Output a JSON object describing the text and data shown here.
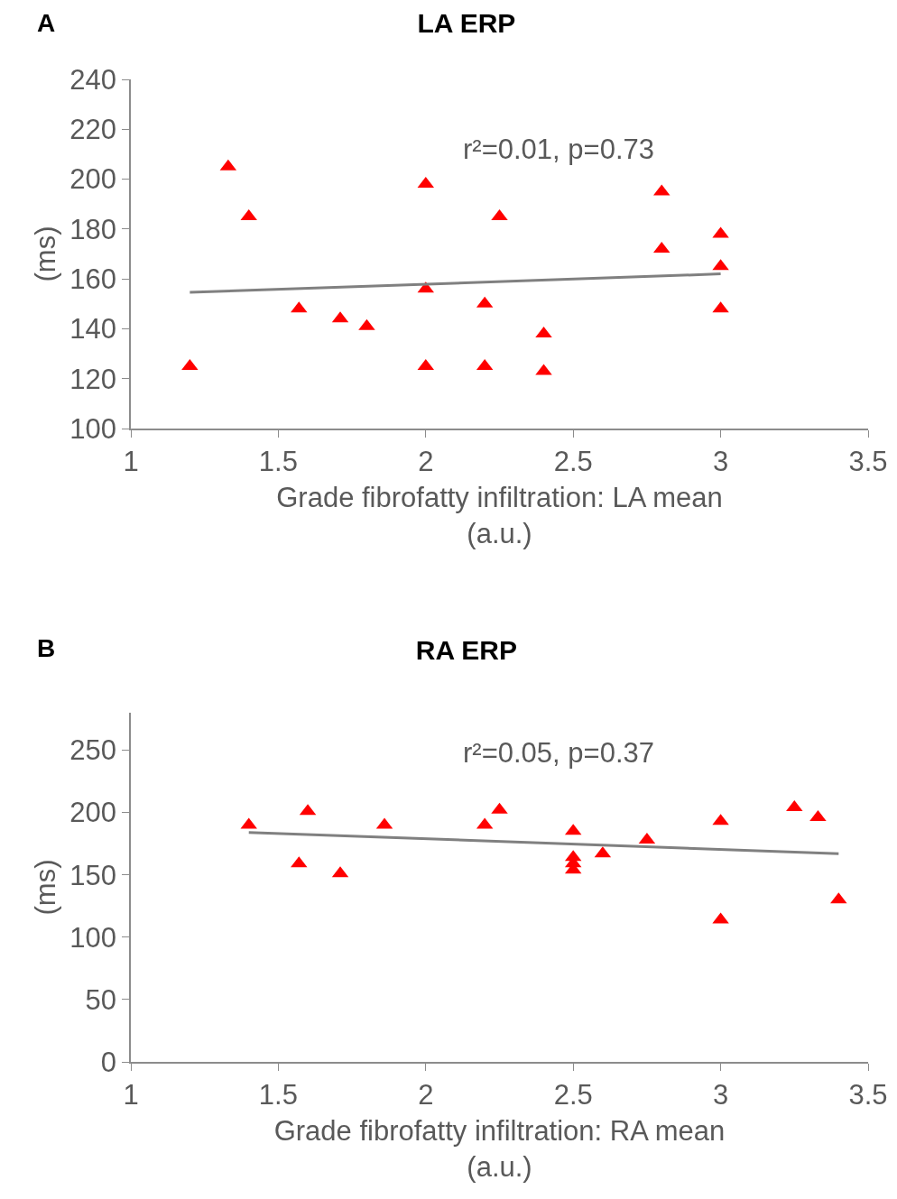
{
  "chart_data": [
    {
      "type": "scatter",
      "title": "LA ERP",
      "xlabel": "Grade fibrofatty infiltration: LA mean\n(a.u.)",
      "ylabel": "(ms)",
      "annotations": [
        "A",
        "r²=0.01, p=0.73"
      ],
      "xlim": [
        1,
        3.5
      ],
      "xticks": [
        1,
        1.5,
        2,
        2.5,
        3,
        3.5
      ],
      "ylim": [
        100,
        240
      ],
      "yticks": [
        100,
        120,
        140,
        160,
        180,
        200,
        220,
        240
      ],
      "grid": false,
      "marker": "triangle",
      "series": [
        {
          "color": "#ff0000",
          "x": [
            1.2,
            1.33,
            1.4,
            1.57,
            1.71,
            1.8,
            2.0,
            2.0,
            2.0,
            2.2,
            2.2,
            2.25,
            2.4,
            2.4,
            2.8,
            2.8,
            3.0,
            3.0,
            3.0
          ],
          "values": [
            125,
            205,
            185,
            148,
            144,
            141,
            198,
            156,
            125,
            150,
            125,
            185,
            138,
            123,
            195,
            172,
            178,
            165,
            148
          ]
        },
        {
          "type": "line",
          "marker": "none",
          "color": "#808080",
          "x": [
            1.2,
            3.0
          ],
          "values": [
            154.6,
            162
          ]
        }
      ]
    },
    {
      "type": "scatter",
      "title": "RA ERP",
      "xlabel": "Grade fibrofatty infiltration: RA mean\n(a.u.)",
      "ylabel": "(ms)",
      "annotations": [
        "B",
        "r²=0.05, p=0.37"
      ],
      "xlim": [
        1,
        3.5
      ],
      "xticks": [
        1,
        1.5,
        2,
        2.5,
        3,
        3.5
      ],
      "ylim": [
        0,
        280
      ],
      "yticks": [
        0,
        50,
        100,
        150,
        200,
        250
      ],
      "grid": false,
      "marker": "triangle",
      "series": [
        {
          "color": "#ff0000",
          "x": [
            1.4,
            1.57,
            1.6,
            1.71,
            1.86,
            2.2,
            2.25,
            2.5,
            2.5,
            2.5,
            2.5,
            2.6,
            2.75,
            3.0,
            3.0,
            3.25,
            3.33,
            3.4
          ],
          "values": [
            190,
            159,
            201,
            151,
            190,
            190,
            202,
            185,
            164,
            159,
            154,
            167,
            178,
            193,
            114,
            204,
            196,
            130
          ]
        },
        {
          "type": "line",
          "marker": "none",
          "color": "#808080",
          "x": [
            1.4,
            3.4
          ],
          "values": [
            184,
            167
          ]
        }
      ]
    }
  ]
}
